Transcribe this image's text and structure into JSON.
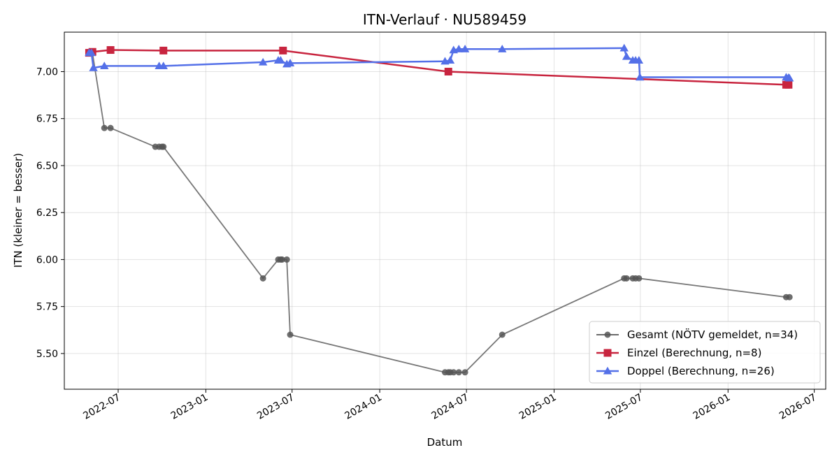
{
  "chart_data": {
    "type": "line",
    "title": "ITN-Verlauf · NU589459",
    "xlabel": "Datum",
    "ylabel": "ITN  (kleiner = besser)",
    "x_type": "date",
    "xlim": [
      "2022-03-10",
      "2026-07-25"
    ],
    "ylim": [
      5.31,
      7.21
    ],
    "x_ticks": [
      "2022-07-01",
      "2023-01-01",
      "2023-07-01",
      "2024-01-01",
      "2024-07-01",
      "2025-01-01",
      "2025-07-01",
      "2026-01-01",
      "2026-07-01"
    ],
    "x_tick_labels": [
      "2022-07",
      "2023-01",
      "2023-07",
      "2024-01",
      "2024-07",
      "2025-01",
      "2025-07",
      "2026-01",
      "2026-07"
    ],
    "y_ticks": [
      5.5,
      5.75,
      6.0,
      6.25,
      6.5,
      6.75,
      7.0
    ],
    "y_tick_labels": [
      "5.50",
      "5.75",
      "6.00",
      "6.25",
      "6.50",
      "6.75",
      "7.00"
    ],
    "grid": true,
    "legend_position": "lower-right",
    "series": [
      {
        "name": "Gesamt (NÖTV gemeldet, n=34)",
        "color": "#555555",
        "marker": "circle",
        "points": [
          [
            "2022-05-01",
            7.1
          ],
          [
            "2022-05-08",
            7.1
          ],
          [
            "2022-06-02",
            6.7
          ],
          [
            "2022-06-15",
            6.7
          ],
          [
            "2022-09-17",
            6.6
          ],
          [
            "2022-09-25",
            6.6
          ],
          [
            "2022-10-01",
            6.6
          ],
          [
            "2022-10-04",
            6.6
          ],
          [
            "2023-05-01",
            5.9
          ],
          [
            "2023-06-02",
            6.0
          ],
          [
            "2023-06-07",
            6.0
          ],
          [
            "2023-06-10",
            6.0
          ],
          [
            "2023-06-20",
            6.0
          ],
          [
            "2023-06-27",
            5.6
          ],
          [
            "2024-05-17",
            5.4
          ],
          [
            "2024-05-24",
            5.4
          ],
          [
            "2024-05-28",
            5.4
          ],
          [
            "2024-06-04",
            5.4
          ],
          [
            "2024-06-15",
            5.4
          ],
          [
            "2024-06-28",
            5.4
          ],
          [
            "2024-09-14",
            5.6
          ],
          [
            "2025-05-28",
            5.9
          ],
          [
            "2025-06-02",
            5.9
          ],
          [
            "2025-06-15",
            5.9
          ],
          [
            "2025-06-21",
            5.9
          ],
          [
            "2025-06-28",
            5.9
          ],
          [
            "2026-05-03",
            5.8
          ],
          [
            "2026-05-10",
            5.8
          ]
        ]
      },
      {
        "name": "Einzel (Berechnung, n=8)",
        "color": "#c8253f",
        "marker": "square",
        "points": [
          [
            "2022-05-01",
            7.1
          ],
          [
            "2022-05-08",
            7.105
          ],
          [
            "2022-06-15",
            7.115
          ],
          [
            "2022-10-04",
            7.112
          ],
          [
            "2023-06-12",
            7.112
          ],
          [
            "2024-05-24",
            7.0
          ],
          [
            "2026-05-03",
            6.93
          ],
          [
            "2026-05-08",
            6.93
          ]
        ]
      },
      {
        "name": "Doppel (Berechnung, n=26)",
        "color": "#5470e8",
        "marker": "triangle",
        "points": [
          [
            "2022-05-01",
            7.1
          ],
          [
            "2022-05-06",
            7.1
          ],
          [
            "2022-05-10",
            7.02
          ],
          [
            "2022-06-02",
            7.03
          ],
          [
            "2022-09-25",
            7.03
          ],
          [
            "2022-10-04",
            7.03
          ],
          [
            "2023-05-01",
            7.05
          ],
          [
            "2023-06-02",
            7.06
          ],
          [
            "2023-06-07",
            7.06
          ],
          [
            "2023-06-20",
            7.04
          ],
          [
            "2023-06-27",
            7.045
          ],
          [
            "2024-05-17",
            7.055
          ],
          [
            "2024-05-28",
            7.06
          ],
          [
            "2024-06-04",
            7.115
          ],
          [
            "2024-06-15",
            7.12
          ],
          [
            "2024-06-28",
            7.12
          ],
          [
            "2024-09-14",
            7.12
          ],
          [
            "2025-05-28",
            7.125
          ],
          [
            "2025-06-02",
            7.08
          ],
          [
            "2025-06-15",
            7.06
          ],
          [
            "2025-06-21",
            7.06
          ],
          [
            "2025-06-28",
            7.06
          ],
          [
            "2025-06-30",
            6.97
          ],
          [
            "2026-05-03",
            6.97
          ],
          [
            "2026-05-08",
            6.968
          ],
          [
            "2026-05-10",
            6.965
          ]
        ]
      }
    ]
  }
}
